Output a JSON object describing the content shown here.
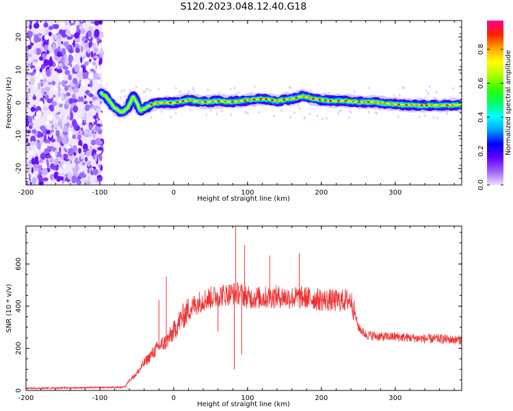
{
  "title": "S120.2023.048.12.40.G18",
  "chart_data": [
    {
      "type": "heatmap",
      "xlabel": "Height of straight line (km)",
      "ylabel": "Frequency (Hz)",
      "xlim": [
        -200,
        390
      ],
      "ylim": [
        -25,
        25
      ],
      "xticks": [
        -200,
        -100,
        0,
        100,
        200,
        300
      ],
      "yticks": [
        -20,
        -10,
        0,
        10,
        20
      ],
      "grid": false,
      "colorbar": {
        "label": "Normalized spectral amplitude",
        "range": [
          0,
          0.97
        ],
        "ticks": [
          0.0,
          0.2,
          0.4,
          0.6,
          0.8
        ],
        "colormap": [
          "#e8e0ff",
          "#a060ff",
          "#6000ff",
          "#0000ff",
          "#00a0ff",
          "#00ffff",
          "#00ff60",
          "#30ff00",
          "#b0ff00",
          "#ffff00",
          "#ffa000",
          "#ff2000",
          "#ff0090"
        ]
      },
      "noise_region": {
        "x": [
          -200,
          -97
        ],
        "amplitude": "~0.1-0.2"
      },
      "ridge": {
        "x": [
          -98,
          -90,
          -80,
          -70,
          -62,
          -55,
          -50,
          -45,
          -38,
          -30,
          -20,
          -10,
          0,
          20,
          40,
          60,
          80,
          100,
          120,
          140,
          160,
          175,
          190,
          210,
          230,
          250,
          270,
          290,
          310,
          330,
          350,
          370,
          390
        ],
        "y": [
          3,
          1.5,
          -1.5,
          -3,
          -1.5,
          2,
          0,
          -2.5,
          -1.5,
          -0.5,
          0,
          0,
          0,
          0.8,
          0.2,
          0.5,
          0.3,
          0.8,
          1.2,
          0.6,
          1.2,
          2.0,
          1.2,
          0.6,
          0.6,
          0.2,
          0.2,
          -0.3,
          -0.6,
          -0.8,
          -0.8,
          -0.8,
          -0.6
        ],
        "peak_amplitude": 0.97
      }
    },
    {
      "type": "line",
      "xlabel": "Height of straight line (km)",
      "ylabel": "SNR (10 * v/v)",
      "xlim": [
        -200,
        390
      ],
      "ylim": [
        0,
        780
      ],
      "xticks": [
        -200,
        -100,
        0,
        100,
        200,
        300
      ],
      "yticks": [
        0,
        200,
        400,
        600
      ],
      "grid": false,
      "series": [
        {
          "color": "#f03030",
          "x": [
            -200,
            -150,
            -100,
            -70,
            -65,
            -60,
            -50,
            -40,
            -30,
            -20,
            -10,
            0,
            10,
            20,
            30,
            40,
            50,
            60,
            70,
            80,
            90,
            100,
            120,
            140,
            160,
            180,
            200,
            220,
            240,
            245,
            250,
            260,
            280,
            300,
            320,
            340,
            360,
            380,
            390
          ],
          "y": [
            10,
            12,
            14,
            15,
            20,
            50,
            80,
            130,
            170,
            210,
            230,
            280,
            340,
            380,
            410,
            430,
            440,
            450,
            455,
            460,
            460,
            440,
            440,
            445,
            440,
            440,
            430,
            425,
            430,
            370,
            300,
            265,
            255,
            255,
            250,
            245,
            245,
            240,
            240
          ],
          "spikes": [
            {
              "x": 84,
              "y": 780
            },
            {
              "x": 96,
              "y": 690
            },
            {
              "x": 82,
              "y": 100
            },
            {
              "x": 92,
              "y": 170
            },
            {
              "x": -10,
              "y": 540
            },
            {
              "x": -20,
              "y": 430
            },
            {
              "x": 130,
              "y": 640
            },
            {
              "x": 170,
              "y": 650
            },
            {
              "x": 60,
              "y": 280
            }
          ]
        }
      ]
    }
  ]
}
